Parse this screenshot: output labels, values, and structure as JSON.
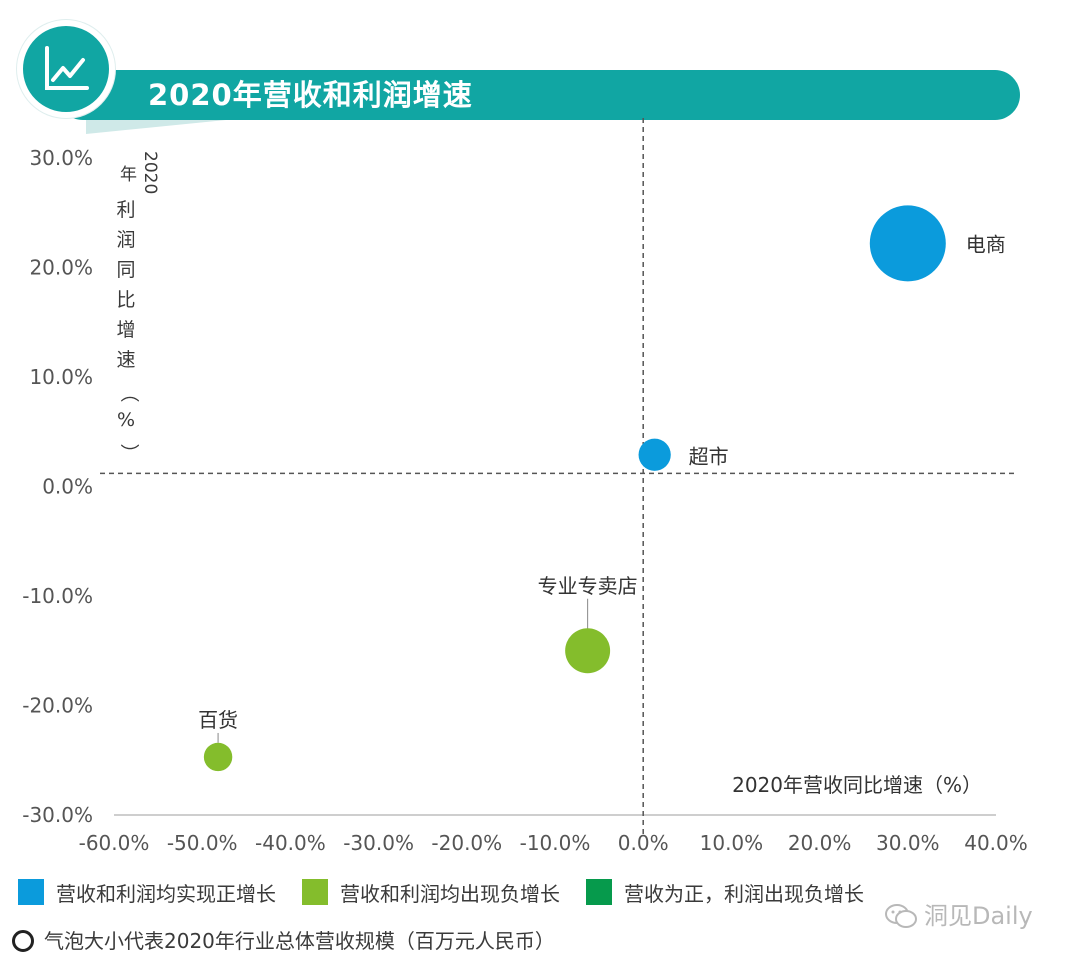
{
  "header": {
    "title": "2020年营收和利润增速",
    "icon": "line-chart-icon"
  },
  "chart_data": {
    "type": "scatter",
    "title": "2020年营收和利润增速",
    "xlabel": "2020年营收同比增速（%）",
    "ylabel": "2020年利润同比增速（%）",
    "xlim": [
      -60,
      40
    ],
    "ylim": [
      -30,
      30
    ],
    "x_ticks": [
      "-60.0%",
      "-50.0%",
      "-40.0%",
      "-30.0%",
      "-20.0%",
      "-10.0%",
      "0.0%",
      "10.0%",
      "20.0%",
      "30.0%",
      "40.0%"
    ],
    "y_ticks": [
      "30.0%",
      "20.0%",
      "10.0%",
      "0.0%",
      "-10.0%",
      "-20.0%",
      "-30.0%"
    ],
    "reference_lines": {
      "x": 0,
      "y": 1.2
    },
    "points": [
      {
        "label": "电商",
        "x": 30.0,
        "y": 22.2,
        "size": 1,
        "group": "both_positive"
      },
      {
        "label": "超市",
        "x": 1.3,
        "y": 2.9,
        "size": 0.18,
        "group": "both_positive"
      },
      {
        "label": "专业专卖店",
        "x": -6.3,
        "y": -15.0,
        "size": 0.35,
        "group": "both_negative"
      },
      {
        "label": "百货",
        "x": -48.2,
        "y": -24.7,
        "size": 0.14,
        "group": "both_negative"
      }
    ],
    "colors": {
      "both_positive": "#0b9bdc",
      "both_negative": "#84bd2c",
      "mixed": "#069a4c"
    }
  },
  "legend": {
    "items": [
      {
        "label": "营收和利润均实现正增长",
        "color": "#0b9bdc"
      },
      {
        "label": "营收和利润均出现负增长",
        "color": "#84bd2c"
      },
      {
        "label": "营收为正，利润出现负增长",
        "color": "#069a4c"
      }
    ],
    "note": "气泡大小代表2020年行业总体营收规模（百万元人民币）"
  },
  "watermark": {
    "text": "洞见Daily"
  }
}
